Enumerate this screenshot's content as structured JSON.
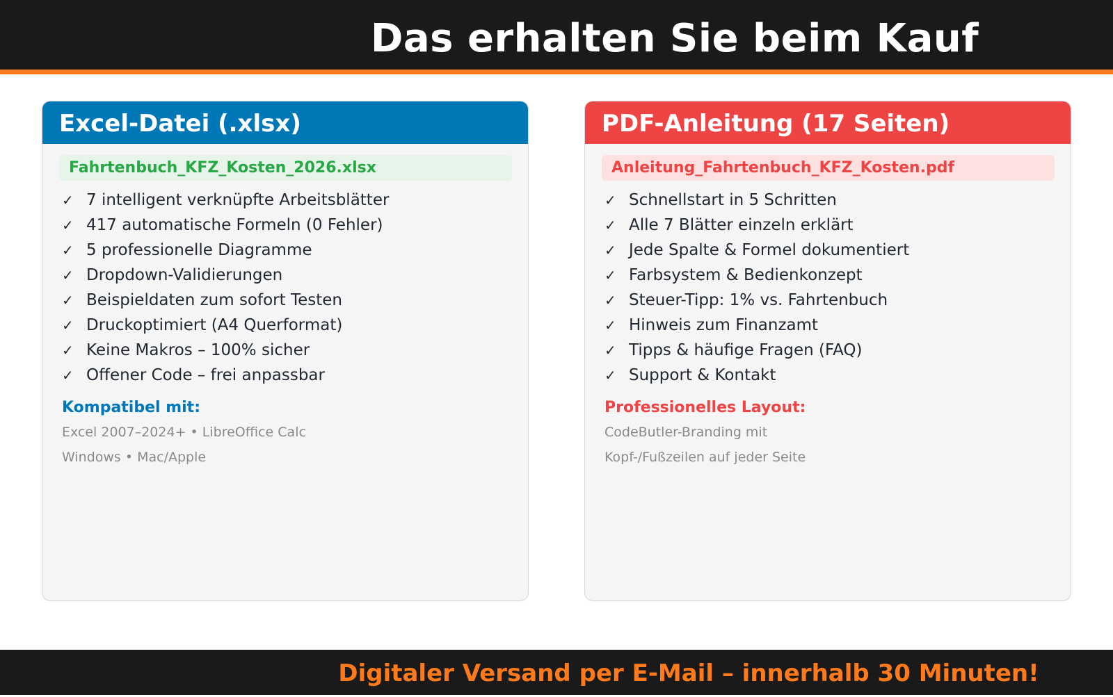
{
  "header": {
    "title": "Das erhalten Sie beim Kauf"
  },
  "colors": {
    "header_bg": "#1a1a1a",
    "accent_orange": "#ff7a1a",
    "excel_blue": "#0077b6",
    "pdf_red": "#ef4444",
    "file_green": "#28a745"
  },
  "cards": [
    {
      "title": "Excel-Datei (.xlsx)",
      "file_name": "Fahrtenbuch_KFZ_Kosten_2026.xlsx",
      "features": [
        "7 intelligent verknüpfte Arbeitsblätter",
        "417 automatische Formeln (0 Fehler)",
        "5 professionelle Diagramme",
        "Dropdown-Validierungen",
        "Beispieldaten zum sofort Testen",
        "Druckoptimiert (A4 Querformat)",
        "Keine Makros – 100% sicher",
        "Offener Code – frei anpassbar"
      ],
      "sub_title": "Kompatibel mit:",
      "sub_lines": [
        "Excel 2007–2024+  •  LibreOffice Calc",
        "Windows  •  Mac/Apple"
      ]
    },
    {
      "title": "PDF-Anleitung (17 Seiten)",
      "file_name": "Anleitung_Fahrtenbuch_KFZ_Kosten.pdf",
      "features": [
        "Schnellstart in 5 Schritten",
        "Alle 7 Blätter einzeln erklärt",
        "Jede Spalte & Formel dokumentiert",
        "Farbsystem & Bedienkonzept",
        "Steuer-Tipp: 1% vs. Fahrtenbuch",
        "Hinweis zum Finanzamt",
        "Tipps & häufige Fragen (FAQ)",
        "Support & Kontakt"
      ],
      "sub_title": "Professionelles Layout:",
      "sub_lines": [
        "CodeButler-Branding mit",
        "Kopf-/Fußzeilen auf jeder Seite"
      ]
    }
  ],
  "check_glyph": "✓",
  "footer": {
    "text": "Digitaler Versand per E-Mail – innerhalb 30 Minuten!"
  }
}
